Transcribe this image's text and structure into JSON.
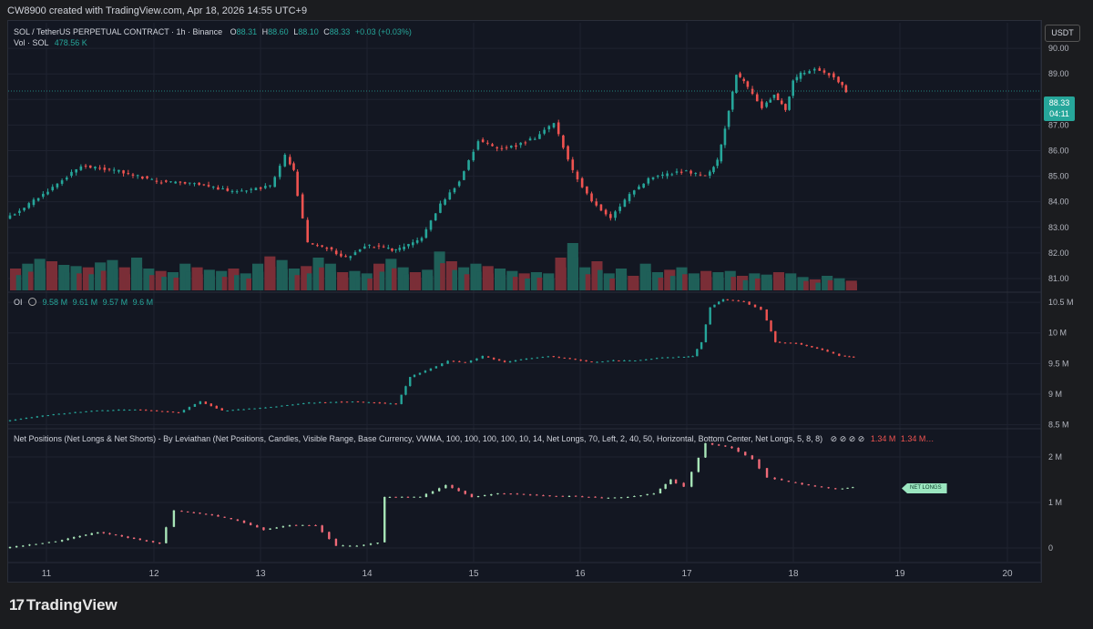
{
  "header": {
    "created": "CW8900 created with TradingView.com, Apr 18, 2026 14:55 UTC+9"
  },
  "symbol": {
    "name": "SOL / TetherUS PERPETUAL CONTRACT · 1h · Binance",
    "o_label": "O",
    "o": "88.31",
    "h_label": "H",
    "h": "88.60",
    "l_label": "L",
    "l": "88.10",
    "c_label": "C",
    "c": "88.33",
    "change": "+0.03 (+0.03%)",
    "vol_label": "Vol · SOL",
    "vol": "478.56 K"
  },
  "oi": {
    "label": "OI",
    "v1": "9.58 M",
    "v2": "9.61 M",
    "v3": "9.57 M",
    "v4": "9.6 M"
  },
  "netpos": {
    "label": "Net Positions (Net Longs & Net Shorts) - By Leviathan (Net Positions, Candles, Visible Range, Base Currency, VWMA, 100, 100, 100, 100, 10, 14, Net Longs, 70, Left, 2, 40, 50, Horizontal, Bottom Center, Net Longs, 5, 8, 8)",
    "icons": "⊘ ⊘ ⊘ ⊘",
    "v1": "1.34 M",
    "v2": "1.34 M…"
  },
  "currency": "USDT",
  "last_price": {
    "price": "88.33",
    "countdown": "04:11"
  },
  "net_longs_tag": "NET LONGS",
  "logo": {
    "text": "TradingView",
    "mark": "17"
  },
  "colors": {
    "up": "#26a69a",
    "down": "#ef5350",
    "bg": "#131722",
    "grid": "#1f2330",
    "net_up": "#a8e6b8",
    "net_down": "#f06a78"
  },
  "chart_data": [
    {
      "type": "candlestick",
      "name": "SOL / TetherUS PERPETUAL CONTRACT · 1h · Binance",
      "x_ticks": [
        "11",
        "12",
        "13",
        "14",
        "15",
        "16",
        "17",
        "18",
        "19",
        "20"
      ],
      "y_ticks": [
        "90.00",
        "89.00",
        "88.00",
        "87.00",
        "86.00",
        "85.00",
        "84.00",
        "83.00",
        "82.00",
        "81.00"
      ],
      "ylim": [
        80.5,
        91.0
      ],
      "close_path": [
        [
          0,
          83.3
        ],
        [
          1,
          84.3
        ],
        [
          2,
          85.4
        ],
        [
          3,
          85.2
        ],
        [
          4,
          84.8
        ],
        [
          5,
          84.7
        ],
        [
          6,
          84.4
        ],
        [
          7,
          84.6
        ],
        [
          7.4,
          85.8
        ],
        [
          7.6,
          85.2
        ],
        [
          8,
          82.4
        ],
        [
          8.5,
          82.2
        ],
        [
          9,
          81.8
        ],
        [
          9.5,
          82.3
        ],
        [
          10,
          82.2
        ],
        [
          10.3,
          82.1
        ],
        [
          11,
          82.6
        ],
        [
          11.5,
          83.9
        ],
        [
          12,
          84.8
        ],
        [
          12.5,
          86.4
        ],
        [
          13,
          86.1
        ],
        [
          13.5,
          86.2
        ],
        [
          14,
          86.5
        ],
        [
          14.5,
          87.1
        ],
        [
          15,
          85.2
        ],
        [
          15.5,
          84.0
        ],
        [
          16,
          83.4
        ],
        [
          16.5,
          84.3
        ],
        [
          17,
          84.9
        ],
        [
          17.5,
          85.1
        ],
        [
          18,
          85.2
        ],
        [
          18.5,
          85.0
        ],
        [
          18.8,
          85.6
        ],
        [
          19.0,
          86.9
        ],
        [
          19.3,
          89.0
        ],
        [
          19.5,
          88.7
        ],
        [
          20,
          87.7
        ],
        [
          20.3,
          88.2
        ],
        [
          20.6,
          87.6
        ],
        [
          20.8,
          88.7
        ],
        [
          21,
          89.0
        ],
        [
          21.4,
          89.2
        ],
        [
          21.9,
          88.9
        ],
        [
          22.2,
          88.33
        ]
      ]
    },
    {
      "type": "bar",
      "name": "Vol · SOL",
      "last_value": "478.56 K",
      "values": [
        18,
        22,
        26,
        24,
        21,
        20,
        19,
        23,
        25,
        19,
        27,
        18,
        16,
        15,
        22,
        19,
        17,
        16,
        18,
        14,
        22,
        28,
        25,
        18,
        20,
        27,
        22,
        15,
        16,
        14,
        22,
        26,
        19,
        15,
        17,
        32,
        24,
        19,
        22,
        20,
        18,
        16,
        14,
        15,
        14,
        27,
        39,
        19,
        24,
        14,
        18,
        12,
        22,
        15,
        17,
        19,
        14,
        16,
        15,
        16,
        12,
        14,
        13,
        15,
        14,
        11,
        9,
        12,
        10,
        8
      ]
    },
    {
      "type": "candlestick",
      "name": "OI",
      "y_ticks": [
        "10.5 M",
        "10 M",
        "9.5 M",
        "9 M",
        "8.5 M"
      ],
      "ylim": [
        8.45,
        10.65
      ],
      "close_path": [
        [
          0,
          8.56
        ],
        [
          1,
          8.66
        ],
        [
          2,
          8.73
        ],
        [
          3,
          8.75
        ],
        [
          4,
          8.7
        ],
        [
          4.5,
          8.88
        ],
        [
          5,
          8.73
        ],
        [
          6,
          8.78
        ],
        [
          7,
          8.86
        ],
        [
          8,
          8.88
        ],
        [
          8.5,
          8.86
        ],
        [
          9,
          8.84
        ],
        [
          9.3,
          9.28
        ],
        [
          9.8,
          9.42
        ],
        [
          10.2,
          9.54
        ],
        [
          10.6,
          9.52
        ],
        [
          11,
          9.62
        ],
        [
          11.5,
          9.52
        ],
        [
          12,
          9.58
        ],
        [
          12.5,
          9.62
        ],
        [
          13,
          9.58
        ],
        [
          13.5,
          9.52
        ],
        [
          14,
          9.55
        ],
        [
          14.5,
          9.55
        ],
        [
          15,
          9.59
        ],
        [
          15.5,
          9.61
        ],
        [
          15.8,
          9.62
        ],
        [
          16.0,
          9.85
        ],
        [
          16.2,
          10.42
        ],
        [
          16.5,
          10.55
        ],
        [
          17,
          10.51
        ],
        [
          17.4,
          10.38
        ],
        [
          17.7,
          9.85
        ],
        [
          18.2,
          9.83
        ],
        [
          18.8,
          9.72
        ],
        [
          19.2,
          9.63
        ],
        [
          19.5,
          9.6
        ]
      ]
    },
    {
      "type": "candlestick",
      "name": "Net Positions (Net Longs & Net Shorts)",
      "y_ticks": [
        "2 M",
        "1 M",
        "0"
      ],
      "ylim": [
        -0.3,
        2.6
      ],
      "close_path": [
        [
          0,
          0.0
        ],
        [
          1,
          0.15
        ],
        [
          1.8,
          0.35
        ],
        [
          2.5,
          0.2
        ],
        [
          3,
          0.1
        ],
        [
          3.3,
          0.82
        ],
        [
          4,
          0.72
        ],
        [
          4.5,
          0.6
        ],
        [
          5,
          0.4
        ],
        [
          5.5,
          0.5
        ],
        [
          6,
          0.5
        ],
        [
          6.4,
          0.05
        ],
        [
          6.8,
          0.05
        ],
        [
          7.2,
          0.12
        ],
        [
          7.3,
          1.12
        ],
        [
          8,
          1.12
        ],
        [
          8.5,
          1.38
        ],
        [
          9,
          1.12
        ],
        [
          9.5,
          1.2
        ],
        [
          10,
          1.18
        ],
        [
          10.5,
          1.14
        ],
        [
          11,
          1.14
        ],
        [
          11.5,
          1.1
        ],
        [
          12,
          1.12
        ],
        [
          12.5,
          1.2
        ],
        [
          12.8,
          1.5
        ],
        [
          13.1,
          1.35
        ],
        [
          13.5,
          2.3
        ],
        [
          14,
          2.2
        ],
        [
          14.4,
          1.95
        ],
        [
          14.7,
          1.55
        ],
        [
          15.1,
          1.45
        ],
        [
          15.6,
          1.35
        ],
        [
          16.0,
          1.3
        ],
        [
          16.3,
          1.34
        ]
      ]
    }
  ]
}
